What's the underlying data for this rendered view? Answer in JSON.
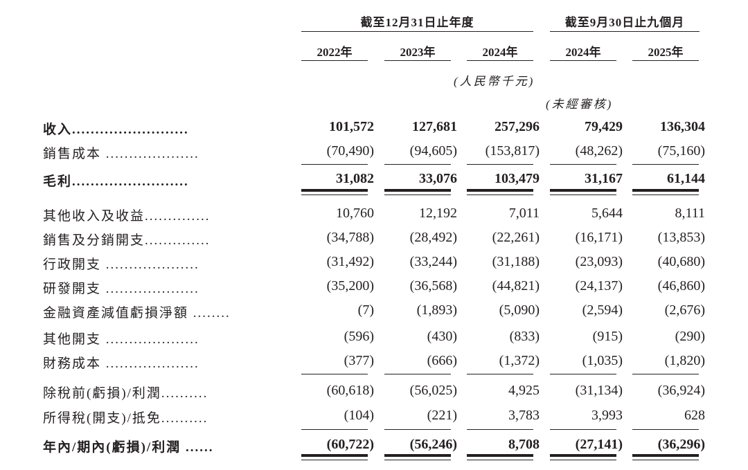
{
  "header": {
    "groups": [
      "截至12月31日止年度",
      "截至9月30日止九個月"
    ],
    "years": [
      "2022年",
      "2023年",
      "2024年",
      "2024年",
      "2025年"
    ],
    "currency_note": "(人民幣千元)",
    "unaudited_note": "(未經審核)"
  },
  "rows": [
    {
      "label": "收入.........................",
      "bold": true,
      "values": [
        "101,572",
        "127,681",
        "257,296",
        "79,429",
        "136,304"
      ]
    },
    {
      "label": "銷售成本 ....................",
      "bold": false,
      "values": [
        "(70,490)",
        "(94,605)",
        "(153,817)",
        "(48,262)",
        "(75,160)"
      ]
    },
    {
      "label": "毛利.........................",
      "bold": true,
      "values": [
        "31,082",
        "33,076",
        "103,479",
        "31,167",
        "61,144"
      ]
    },
    {
      "label": "其他收入及收益..............",
      "bold": false,
      "values": [
        "10,760",
        "12,192",
        "7,011",
        "5,644",
        "8,111"
      ]
    },
    {
      "label": "銷售及分銷開支..............",
      "bold": false,
      "values": [
        "(34,788)",
        "(28,492)",
        "(22,261)",
        "(16,171)",
        "(13,853)"
      ]
    },
    {
      "label": "行政開支 ....................",
      "bold": false,
      "values": [
        "(31,492)",
        "(33,244)",
        "(31,188)",
        "(23,093)",
        "(40,680)"
      ]
    },
    {
      "label": "研發開支 ....................",
      "bold": false,
      "values": [
        "(35,200)",
        "(36,568)",
        "(44,821)",
        "(24,137)",
        "(46,860)"
      ]
    },
    {
      "label": "金融資產減值虧損淨額 ........",
      "bold": false,
      "values": [
        "(7)",
        "(1,893)",
        "(5,090)",
        "(2,594)",
        "(2,676)"
      ]
    },
    {
      "label": "其他開支 ....................",
      "bold": false,
      "values": [
        "(596)",
        "(430)",
        "(833)",
        "(915)",
        "(290)"
      ]
    },
    {
      "label": "財務成本 ....................",
      "bold": false,
      "values": [
        "(377)",
        "(666)",
        "(1,372)",
        "(1,035)",
        "(1,820)"
      ]
    },
    {
      "label": "除稅前(虧損)/利潤..........",
      "bold": false,
      "values": [
        "(60,618)",
        "(56,025)",
        "4,925",
        "(31,134)",
        "(36,924)"
      ]
    },
    {
      "label": "所得稅(開支)/抵免..........",
      "bold": false,
      "values": [
        "(104)",
        "(221)",
        "3,783",
        "3,993",
        "628"
      ]
    },
    {
      "label": "年內/期內(虧損)/利潤 ......",
      "bold": true,
      "values": [
        "(60,722)",
        "(56,246)",
        "8,708",
        "(27,141)",
        "(36,296)"
      ]
    }
  ]
}
